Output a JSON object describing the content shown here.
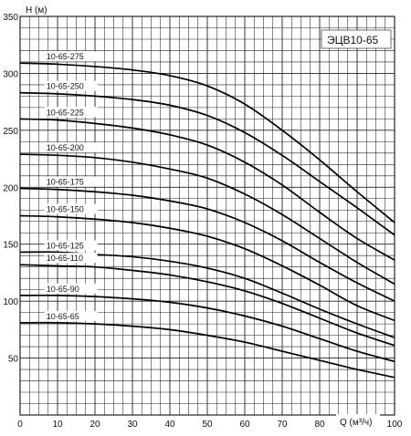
{
  "chart_data": {
    "type": "line",
    "title": "ЭЦВ10-65",
    "xlabel": "Q (м³/ч)",
    "ylabel": "H (м)",
    "xlim": [
      0,
      100
    ],
    "ylim": [
      0,
      350
    ],
    "x_ticks": [
      0,
      10,
      20,
      30,
      40,
      50,
      60,
      70,
      80,
      90,
      100
    ],
    "y_ticks": [
      50,
      100,
      150,
      200,
      250,
      300,
      350
    ],
    "x_tick_labels": [
      "0",
      "10",
      "20",
      "30",
      "40",
      "50",
      "60",
      "70",
      "80",
      "90",
      "100"
    ],
    "y_tick_labels": [
      "50",
      "100",
      "150",
      "200",
      "250",
      "300",
      "350"
    ],
    "grid": true,
    "minor_grid_x": 2.5,
    "minor_grid_y": 10,
    "x": [
      0,
      10,
      20,
      30,
      40,
      50,
      60,
      70,
      80,
      90,
      100
    ],
    "series": [
      {
        "name": "10-65-275",
        "values": [
          309,
          308,
          306,
          303,
          298,
          289,
          273,
          250,
          224,
          196,
          169
        ]
      },
      {
        "name": "10-65-250",
        "values": [
          283,
          282,
          280,
          277,
          272,
          263,
          248,
          228,
          205,
          182,
          158
        ]
      },
      {
        "name": "10-65-225",
        "values": [
          260,
          259,
          256,
          252,
          246,
          237,
          222,
          202,
          178,
          155,
          136
        ]
      },
      {
        "name": "10-65-200",
        "values": [
          229,
          228,
          226,
          222,
          216,
          208,
          194,
          176,
          155,
          134,
          115
        ]
      },
      {
        "name": "10-65-175",
        "values": [
          199,
          198,
          196,
          193,
          188,
          181,
          169,
          153,
          134,
          116,
          100
        ]
      },
      {
        "name": "10-65-150",
        "values": [
          175,
          174,
          172,
          169,
          164,
          157,
          146,
          131,
          114,
          96,
          83
        ]
      },
      {
        "name": "10-65-125",
        "values": [
          143,
          143,
          141,
          139,
          135,
          129,
          120,
          107,
          93,
          80,
          68
        ]
      },
      {
        "name": "10-65-110",
        "values": [
          132,
          131,
          130,
          127,
          123,
          117,
          109,
          98,
          85,
          72,
          61
        ]
      },
      {
        "name": "10-65-90",
        "values": [
          105,
          105,
          104,
          102,
          99,
          94,
          87,
          78,
          67,
          56,
          47
        ]
      },
      {
        "name": "10-65-65",
        "values": [
          81,
          81,
          80,
          78,
          75,
          70,
          64,
          56,
          48,
          40,
          33
        ]
      }
    ]
  }
}
